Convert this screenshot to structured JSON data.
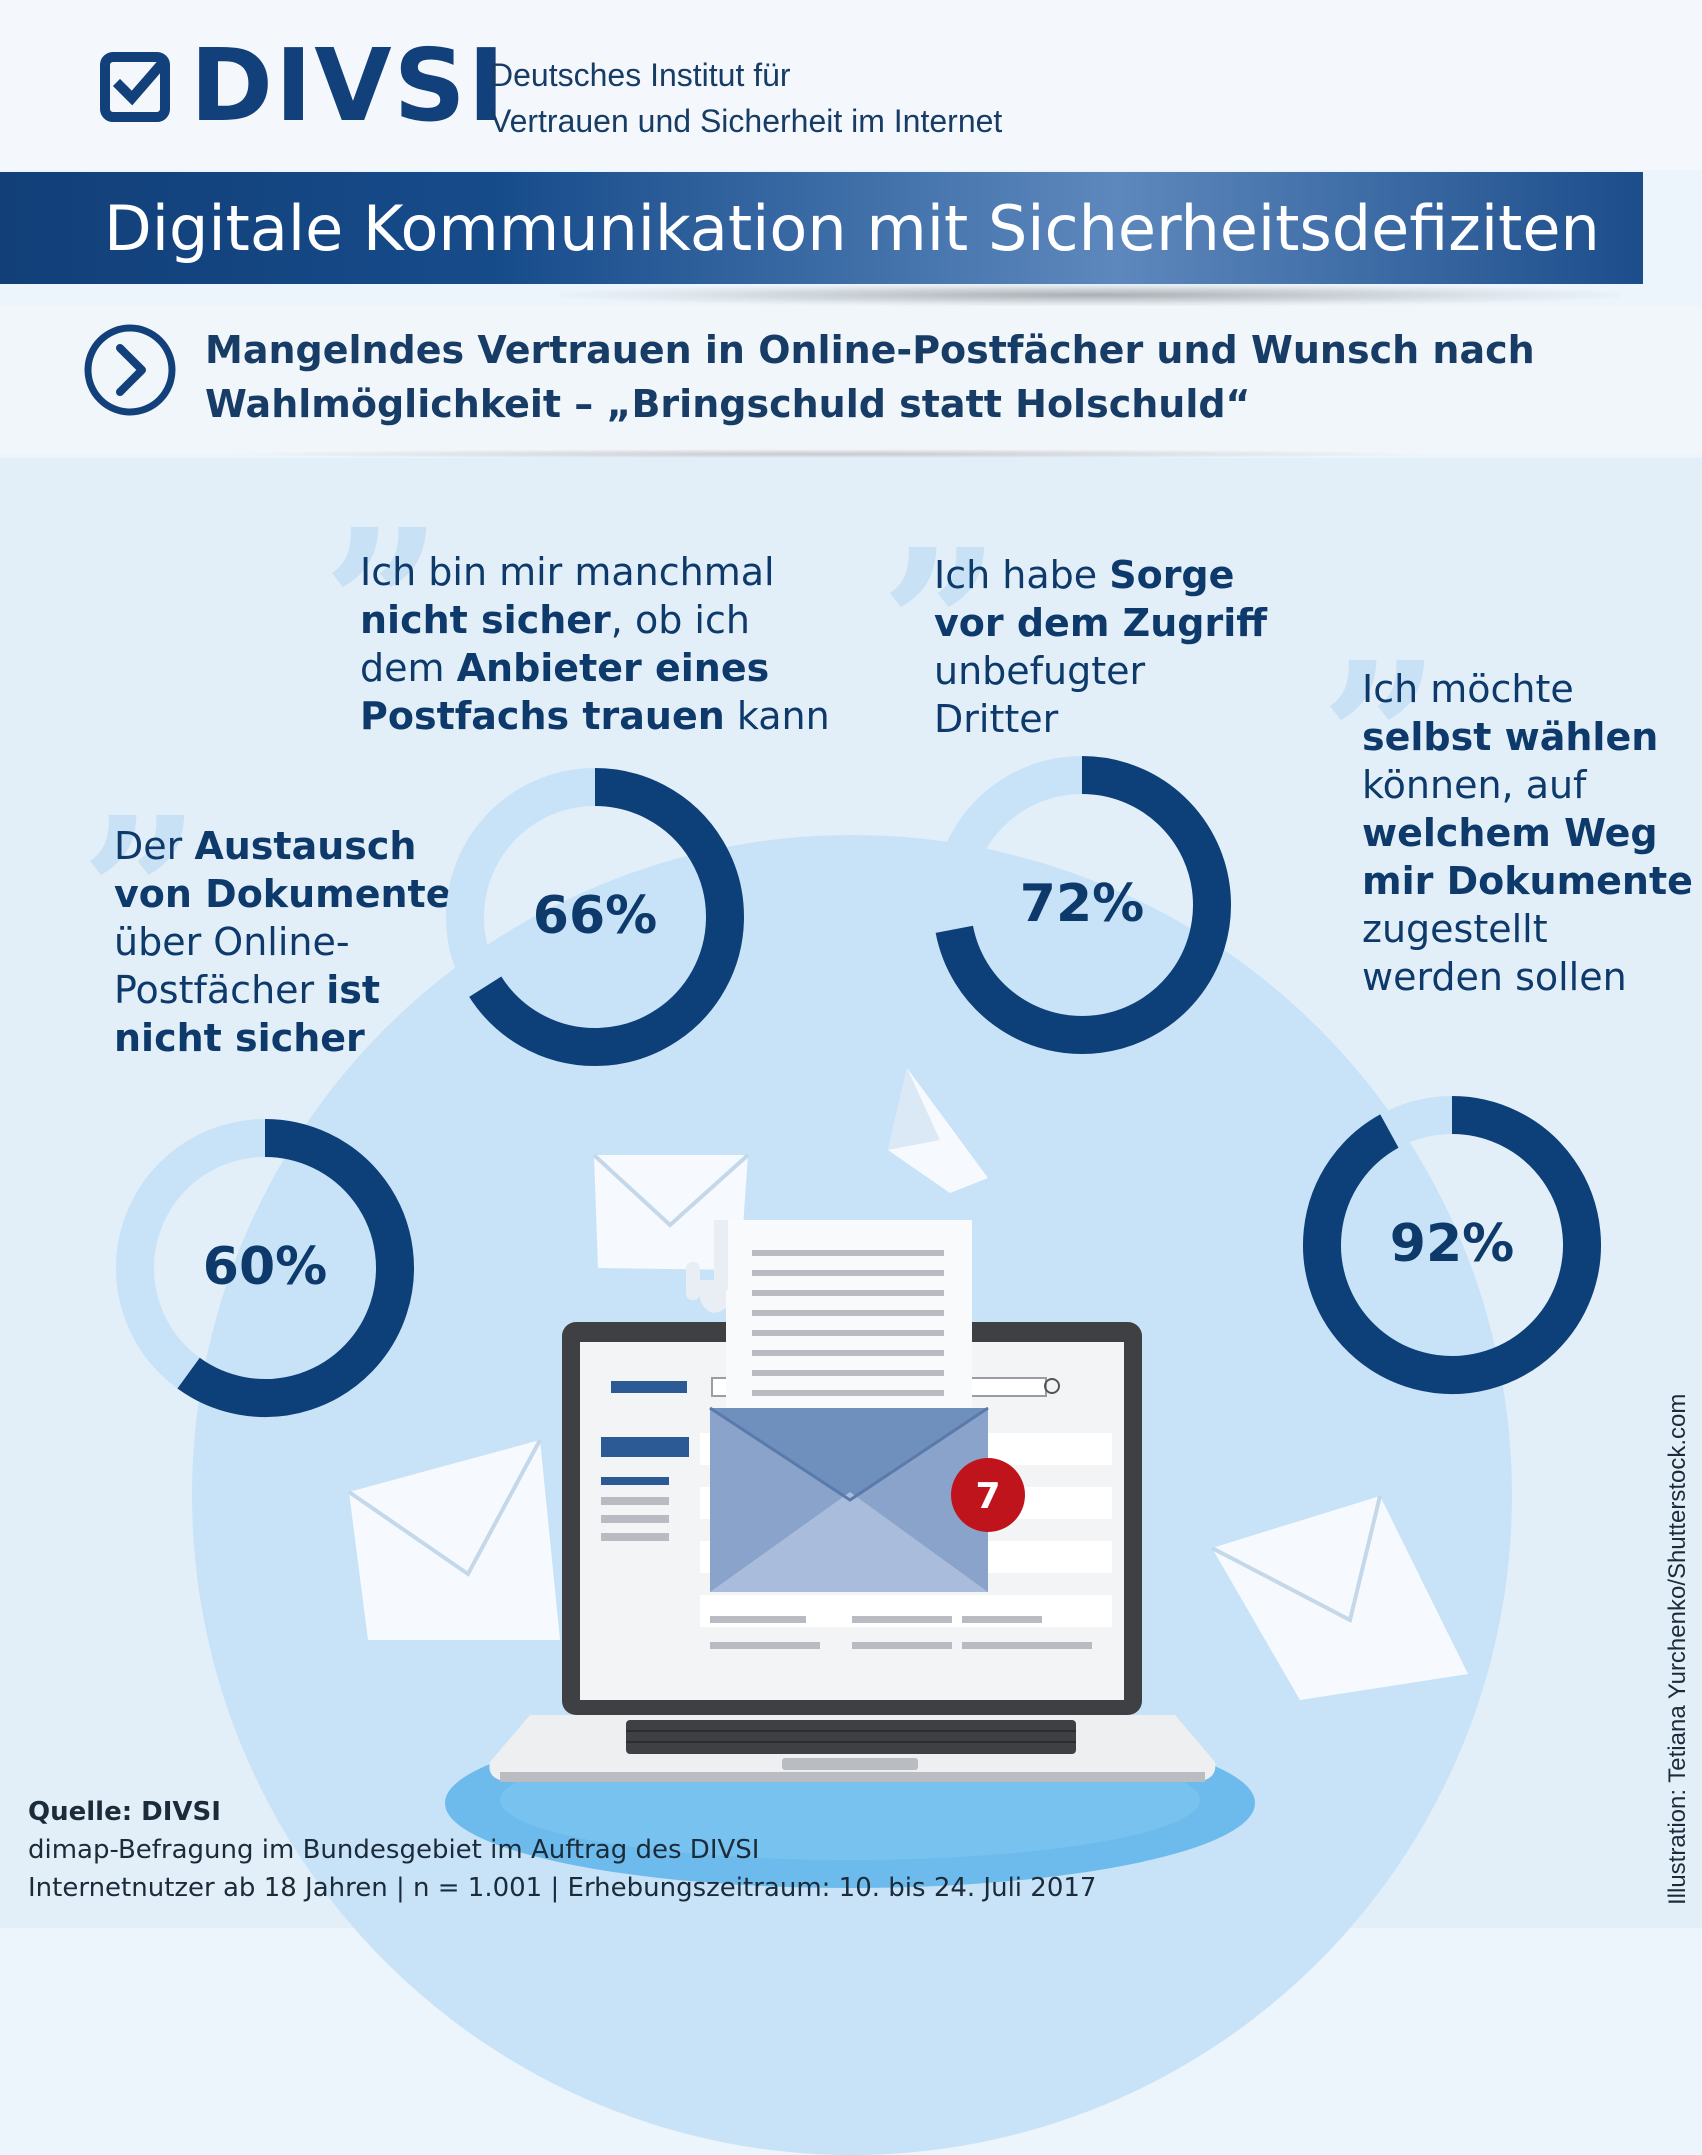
{
  "header": {
    "logo_text": "DIVSI",
    "org_line1": "Deutsches Institut für",
    "org_line2": "Vertrauen und Sicherheit im Internet"
  },
  "title": "Digitale Kommunikation mit Sicherheitsdefiziten",
  "subtitle": {
    "line1": "Mangelndes Vertrauen in Online-Postfächer und Wunsch nach",
    "line2": "Wahlmöglichkeit – „Bringschuld statt Holschuld“"
  },
  "chart_data": {
    "type": "pie",
    "subtype": "donut",
    "items": [
      {
        "value": 60,
        "label": "60%",
        "quote": [
          [
            {
              "t": "Der ",
              "b": false
            },
            {
              "t": "Austausch",
              "b": true
            }
          ],
          [
            {
              "t": "von Dokumenten",
              "b": true
            }
          ],
          [
            {
              "t": "über Online-",
              "b": false
            }
          ],
          [
            {
              "t": "Postfächer ",
              "b": false
            },
            {
              "t": "ist",
              "b": true
            }
          ],
          [
            {
              "t": "nicht sicher",
              "b": true
            }
          ]
        ]
      },
      {
        "value": 66,
        "label": "66%",
        "quote": [
          [
            {
              "t": "Ich bin mir manchmal",
              "b": false
            }
          ],
          [
            {
              "t": "nicht sicher",
              "b": true
            },
            {
              "t": ", ob ich",
              "b": false
            }
          ],
          [
            {
              "t": "dem ",
              "b": false
            },
            {
              "t": "Anbieter eines",
              "b": true
            }
          ],
          [
            {
              "t": "Postfachs trauen",
              "b": true
            },
            {
              "t": " kann",
              "b": false
            }
          ]
        ]
      },
      {
        "value": 72,
        "label": "72%",
        "quote": [
          [
            {
              "t": "Ich habe ",
              "b": false
            },
            {
              "t": "Sorge",
              "b": true
            }
          ],
          [
            {
              "t": "vor dem Zugriff",
              "b": true
            }
          ],
          [
            {
              "t": "unbefugter",
              "b": false
            }
          ],
          [
            {
              "t": "Dritter",
              "b": false
            }
          ]
        ]
      },
      {
        "value": 92,
        "label": "92%",
        "quote": [
          [
            {
              "t": "Ich möchte",
              "b": false
            }
          ],
          [
            {
              "t": "selbst wählen",
              "b": true
            }
          ],
          [
            {
              "t": "können, auf",
              "b": false
            }
          ],
          [
            {
              "t": "welchem Weg",
              "b": true
            }
          ],
          [
            {
              "t": "mir Dokumente",
              "b": true
            }
          ],
          [
            {
              "t": "zugestellt",
              "b": false
            }
          ],
          [
            {
              "t": "werden sollen",
              "b": false
            }
          ]
        ]
      }
    ],
    "colors": {
      "filled": "#0d3f78",
      "remainder": "#c8e3f7"
    }
  },
  "illustration": {
    "badge_count": "7"
  },
  "footer": {
    "source": "Quelle: DIVSI",
    "line2": "dimap-Befragung im Bundesgebiet im Auftrag des DIVSI",
    "line3": "Internetnutzer ab 18 Jahren | n = 1.001 | Erhebungszeitraum: 10. bis 24. Juli 2017"
  },
  "credit": "Illustration: Tetiana Yurchenko/Shutterstock.com"
}
